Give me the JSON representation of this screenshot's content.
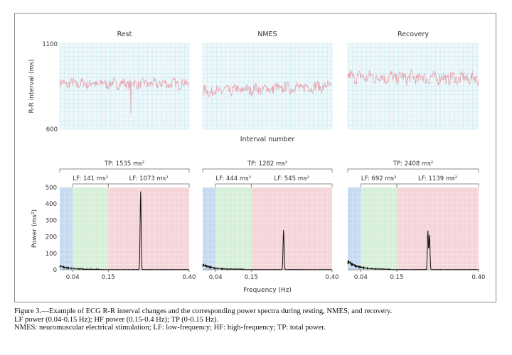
{
  "caption": {
    "line1": "Figure 3.—Example of ECG R-R interval changes and the corresponding power spectra during resting, NMES, and recovery.",
    "line2": "LF power (0.04-0.15 Hz); HF power (0.15-0.4 Hz); TP (0-0.15 Hz).",
    "line3": "NMES: neuromuscular electrical stimulation; LF: low-frequency; HF: high-frequency; TP: total power."
  },
  "colors": {
    "rr_line": "#e7a3ad",
    "rr_bg": "#eef8fb",
    "rr_grid": "#bfe6ef",
    "vlf_band": "#c6d9f1",
    "lf_band": "#d7efd9",
    "hf_band": "#f5d5d9",
    "spectrum_line": "#111111",
    "bracket": "#666666"
  },
  "chart_data": [
    {
      "type": "line",
      "title": "Rest",
      "ylabel": "R-R interval (ms)",
      "xlabel": "",
      "ylim": [
        600,
        1100
      ],
      "yticks": [
        "1100",
        "600"
      ],
      "grid": true,
      "series": [
        {
          "baseline": 865,
          "noise": 55,
          "trend": 0,
          "dips": [
            {
              "at": 0.55,
              "value": 690
            }
          ]
        }
      ]
    },
    {
      "type": "line",
      "title": "NMES",
      "xlabel": "Interval number",
      "ylim": [
        600,
        1100
      ],
      "grid": true,
      "series": [
        {
          "baseline": 835,
          "noise": 60,
          "trend": 30,
          "dips": []
        }
      ]
    },
    {
      "type": "line",
      "title": "Recovery",
      "xlabel": "",
      "ylim": [
        600,
        1100
      ],
      "grid": true,
      "series": [
        {
          "baseline": 900,
          "noise": 70,
          "trend": -10,
          "dips": []
        }
      ]
    },
    {
      "type": "line",
      "ylabel": "Power (ms²)",
      "xlabel": "",
      "xlim": [
        0,
        0.4
      ],
      "ylim": [
        0,
        500
      ],
      "yticks": [
        "500",
        "400",
        "300",
        "200",
        "100",
        "0"
      ],
      "xticks": [
        "0.04",
        "0.15",
        "0.40"
      ],
      "bands": [
        {
          "from": 0,
          "to": 0.04
        },
        {
          "from": 0.04,
          "to": 0.15
        },
        {
          "from": 0.15,
          "to": 0.4
        }
      ],
      "tp_label": "TP: 1535 ms²",
      "lf_label": "LF: 141 ms²",
      "hf_label": "LF: 1073 ms²",
      "peaks": [
        {
          "x": 0.25,
          "y": 475
        }
      ],
      "low_freq_level": 25
    },
    {
      "type": "line",
      "xlabel": "Frequency (Hz)",
      "xlim": [
        0,
        0.4
      ],
      "ylim": [
        0,
        500
      ],
      "xticks": [
        "0.04",
        "0.15",
        "0.40"
      ],
      "bands": [
        {
          "from": 0,
          "to": 0.04
        },
        {
          "from": 0.04,
          "to": 0.15
        },
        {
          "from": 0.15,
          "to": 0.4
        }
      ],
      "tp_label": "TP: 1282 ms²",
      "lf_label": "LF: 444 ms²",
      "hf_label": "LF: 545 ms²",
      "peaks": [
        {
          "x": 0.25,
          "y": 240
        }
      ],
      "low_freq_level": 35
    },
    {
      "type": "line",
      "xlabel": "",
      "xlim": [
        0,
        0.4
      ],
      "ylim": [
        0,
        500
      ],
      "xticks": [
        "0.04",
        "0.15",
        "0.40"
      ],
      "bands": [
        {
          "from": 0,
          "to": 0.04
        },
        {
          "from": 0.04,
          "to": 0.15
        },
        {
          "from": 0.15,
          "to": 0.4
        }
      ],
      "tp_label": "TP: 2408 ms²",
      "lf_label": "LF: 692 ms²",
      "hf_label": "LF: 1139 ms²",
      "peaks": [
        {
          "x": 0.245,
          "y": 235
        },
        {
          "x": 0.25,
          "y": 210
        }
      ],
      "low_freq_level": 60
    }
  ]
}
